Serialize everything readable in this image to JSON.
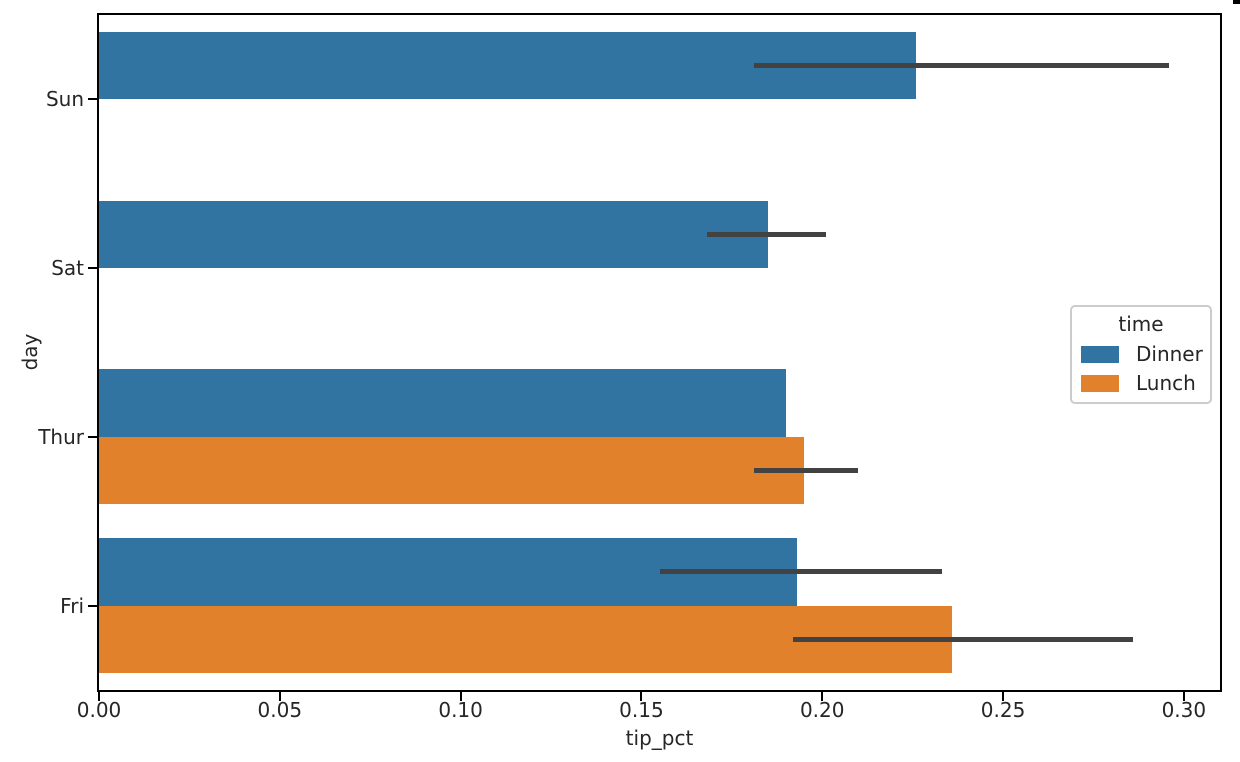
{
  "chart_data": {
    "type": "bar",
    "orientation": "horizontal",
    "title": "",
    "xlabel": "tip_pct",
    "ylabel": "day",
    "categories": [
      "Sun",
      "Sat",
      "Thur",
      "Fri"
    ],
    "series": [
      {
        "name": "Dinner",
        "color": "#3274a1",
        "values": [
          0.226,
          0.185,
          0.19,
          0.193
        ],
        "ci": [
          [
            0.181,
            0.296
          ],
          [
            0.168,
            0.201
          ],
          null,
          [
            0.155,
            0.233
          ]
        ]
      },
      {
        "name": "Lunch",
        "color": "#e1812c",
        "values": [
          null,
          null,
          0.195,
          0.236
        ],
        "ci": [
          null,
          null,
          [
            0.181,
            0.21
          ],
          [
            0.192,
            0.286
          ]
        ]
      }
    ],
    "xlim": [
      0,
      0.31
    ],
    "xticks": [
      0,
      0.05,
      0.1,
      0.15,
      0.2,
      0.25,
      0.3
    ],
    "xtick_labels": [
      "0.00",
      "0.05",
      "0.10",
      "0.15",
      "0.20",
      "0.25",
      "0.30"
    ],
    "grid": false,
    "bar_group_fraction": 0.8,
    "error_bar_color": "#424242",
    "legend": {
      "title": "time",
      "position": "center-right",
      "entries": [
        "Dinner",
        "Lunch"
      ]
    }
  }
}
